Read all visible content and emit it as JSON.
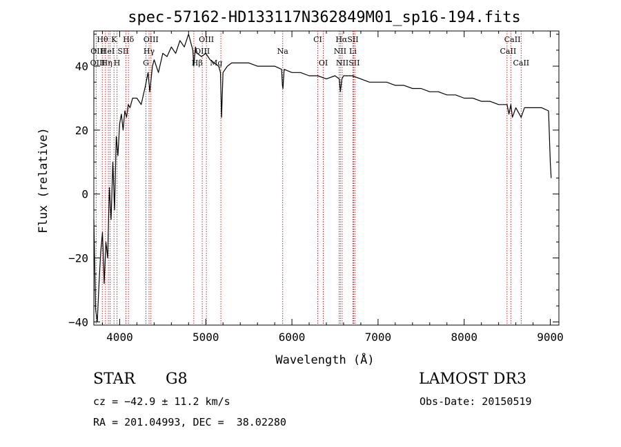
{
  "chart_data": {
    "type": "line",
    "title": "spec-57162-HD133117N362849M01_sp16-194.fits",
    "xlabel": "Wavelength (Å)",
    "ylabel": "Flux (relative)",
    "xlim": [
      3700,
      9100
    ],
    "ylim": [
      -41,
      51
    ],
    "xticks": [
      4000,
      5000,
      6000,
      7000,
      8000,
      9000
    ],
    "yticks": [
      -40,
      -20,
      0,
      20,
      40
    ],
    "series": [
      {
        "name": "spectrum",
        "x": [
          3700,
          3720,
          3740,
          3760,
          3780,
          3800,
          3820,
          3840,
          3860,
          3880,
          3900,
          3920,
          3940,
          3960,
          3980,
          4000,
          4020,
          4040,
          4060,
          4080,
          4100,
          4120,
          4150,
          4200,
          4250,
          4300,
          4330,
          4350,
          4380,
          4400,
          4450,
          4500,
          4550,
          4600,
          4650,
          4700,
          4750,
          4800,
          4830,
          4850,
          4861,
          4880,
          4900,
          4950,
          5000,
          5050,
          5100,
          5150,
          5170,
          5183,
          5200,
          5250,
          5300,
          5400,
          5500,
          5600,
          5700,
          5800,
          5880,
          5890,
          5896,
          5910,
          6000,
          6100,
          6200,
          6300,
          6400,
          6500,
          6550,
          6563,
          6580,
          6600,
          6700,
          6800,
          6900,
          7000,
          7100,
          7200,
          7300,
          7400,
          7500,
          7600,
          7700,
          7800,
          7900,
          8000,
          8100,
          8200,
          8300,
          8400,
          8498,
          8520,
          8542,
          8560,
          8600,
          8662,
          8700,
          8800,
          8900,
          8980,
          9000,
          9010
        ],
        "y": [
          -8,
          -36,
          -40,
          -28,
          -18,
          -12,
          -28,
          -15,
          -20,
          2,
          -8,
          10,
          -5,
          18,
          12,
          22,
          25,
          20,
          26,
          24,
          28,
          27,
          30,
          30,
          28,
          34,
          38,
          32,
          40,
          42,
          38,
          44,
          43,
          46,
          44,
          48,
          46,
          50,
          47,
          45,
          40,
          46,
          44,
          43,
          44,
          42,
          41,
          40,
          38,
          24,
          38,
          40,
          41,
          41,
          41,
          40,
          40,
          40,
          39,
          34,
          33,
          39,
          38,
          38,
          37,
          37,
          36,
          37,
          36,
          32,
          36,
          37,
          37,
          36,
          35,
          35,
          35,
          34,
          34,
          33,
          33,
          32,
          32,
          31,
          31,
          30,
          30,
          29,
          29,
          28,
          28,
          25,
          28,
          24,
          27,
          24,
          27,
          27,
          27,
          26,
          10,
          5
        ]
      }
    ],
    "lines": [
      {
        "name": "CaII K",
        "x": 3934
      },
      {
        "name": "CaII H",
        "x": 3969
      },
      {
        "name": "HeI",
        "x": 3889
      },
      {
        "name": "OII",
        "x": 3727
      },
      {
        "name": "OIII",
        "x": 3869
      },
      {
        "name": "Hθ",
        "x": 3798
      },
      {
        "name": "Hη",
        "x": 3835
      },
      {
        "name": "SII",
        "x": 4072
      },
      {
        "name": "Hδ",
        "x": 4102
      },
      {
        "name": "Hγ",
        "x": 4341
      },
      {
        "name": "G",
        "x": 4305
      },
      {
        "name": "OIII",
        "x": 4363
      },
      {
        "name": "Hβ",
        "x": 4861
      },
      {
        "name": "OIII",
        "x": 4959
      },
      {
        "name": "OIII",
        "x": 5007
      },
      {
        "name": "Mg",
        "x": 5175
      },
      {
        "name": "Na",
        "x": 5893
      },
      {
        "name": "OI",
        "x": 6300
      },
      {
        "name": "OI",
        "x": 6364
      },
      {
        "name": "NII",
        "x": 6548
      },
      {
        "name": "Hα",
        "x": 6563
      },
      {
        "name": "NII",
        "x": 6583
      },
      {
        "name": "Li",
        "x": 6708
      },
      {
        "name": "SII",
        "x": 6716
      },
      {
        "name": "SII",
        "x": 6731
      },
      {
        "name": "CaII",
        "x": 8498
      },
      {
        "name": "CaII",
        "x": 8542
      },
      {
        "name": "CaII",
        "x": 8662
      }
    ],
    "annotations": [
      {
        "text": "Hθ",
        "x": 3800,
        "row": 0
      },
      {
        "text": "K",
        "x": 3934,
        "row": 0
      },
      {
        "text": "Hδ",
        "x": 4102,
        "row": 0
      },
      {
        "text": "OIII",
        "x": 4363,
        "row": 0
      },
      {
        "text": "OIII",
        "x": 5007,
        "row": 0
      },
      {
        "text": "CI",
        "x": 6300,
        "row": 0
      },
      {
        "text": "HαSII",
        "x": 6640,
        "row": 0
      },
      {
        "text": "CaII",
        "x": 8560,
        "row": 0
      },
      {
        "text": "OIII",
        "x": 3750,
        "row": 1
      },
      {
        "text": "HeI",
        "x": 3860,
        "row": 1
      },
      {
        "text": "SII",
        "x": 4040,
        "row": 1
      },
      {
        "text": "Hγ",
        "x": 4341,
        "row": 1
      },
      {
        "text": "OIII",
        "x": 4959,
        "row": 1
      },
      {
        "text": "Na",
        "x": 5893,
        "row": 1
      },
      {
        "text": "NII",
        "x": 6560,
        "row": 1
      },
      {
        "text": "Li",
        "x": 6708,
        "row": 1
      },
      {
        "text": "CaII",
        "x": 8510,
        "row": 1
      },
      {
        "text": "OIII",
        "x": 3745,
        "row": 2
      },
      {
        "text": "Hη",
        "x": 3850,
        "row": 2
      },
      {
        "text": "H",
        "x": 3969,
        "row": 2
      },
      {
        "text": "G",
        "x": 4305,
        "row": 2
      },
      {
        "text": "Hβ",
        "x": 4900,
        "row": 2
      },
      {
        "text": "Mg",
        "x": 5120,
        "row": 2
      },
      {
        "text": "OI",
        "x": 6364,
        "row": 2
      },
      {
        "text": "NIISII",
        "x": 6650,
        "row": 2
      },
      {
        "text": "CaII",
        "x": 8662,
        "row": 2
      }
    ]
  },
  "info": {
    "object_class": "STAR",
    "subclass": "G8",
    "survey": "LAMOST DR3",
    "cz": "cz = −42.9 ± 11.2 km/s",
    "obs_date": "Obs-Date: 20150519",
    "coords": "RA = 201.04993, DEC =  38.02280"
  },
  "colors": {
    "spectrum": "#000000",
    "line_marker": "#cc2222",
    "text": "#000000"
  }
}
